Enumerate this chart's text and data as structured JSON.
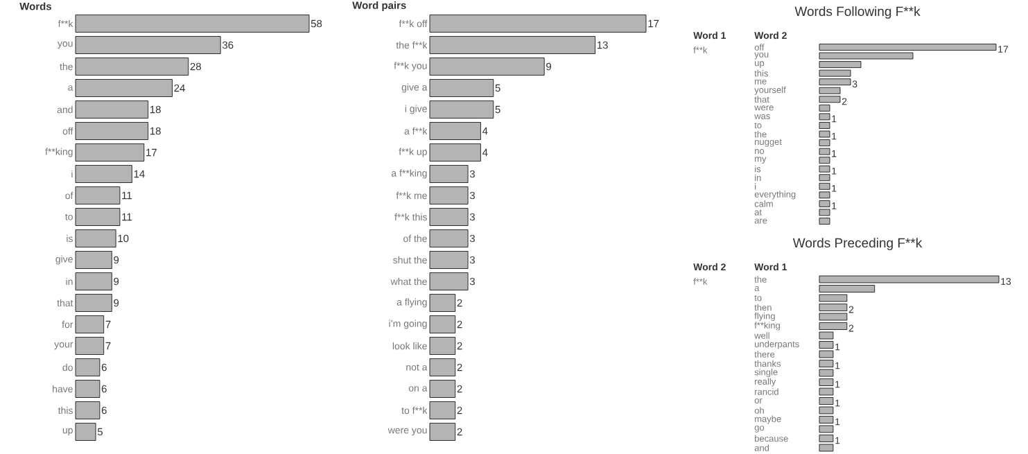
{
  "chart_data": [
    {
      "type": "bar",
      "orientation": "horizontal",
      "ylabel": "Words",
      "color": "#b4b4b4",
      "data_labels": true,
      "categories": [
        "f**k",
        "you",
        "the",
        "a",
        "and",
        "off",
        "f**king",
        "i",
        "of",
        "to",
        "is",
        "give",
        "in",
        "that",
        "for",
        "your",
        "do",
        "have",
        "this",
        "up"
      ],
      "values": [
        58,
        36,
        28,
        24,
        18,
        18,
        17,
        14,
        11,
        11,
        10,
        9,
        9,
        9,
        7,
        7,
        6,
        6,
        6,
        5
      ]
    },
    {
      "type": "bar",
      "orientation": "horizontal",
      "ylabel": "Word pairs",
      "color": "#b4b4b4",
      "data_labels": true,
      "categories": [
        "f**k off",
        "the f**k",
        "f**k you",
        "give a",
        "i give",
        "a f**k",
        "f**k up",
        "a f**king",
        "f**k me",
        "f**k this",
        "of the",
        "shut the",
        "what the",
        "a flying",
        "i’m going",
        "look like",
        "not a",
        "on a",
        "to f**k",
        "were you"
      ],
      "values": [
        17,
        13,
        9,
        5,
        5,
        4,
        4,
        3,
        3,
        3,
        3,
        3,
        3,
        2,
        2,
        2,
        2,
        2,
        2,
        2
      ]
    },
    {
      "type": "bar",
      "orientation": "horizontal",
      "title": "Words Following F**k",
      "ylabel": "Word 2",
      "annotations": [
        "Word 1",
        "f**k"
      ],
      "color": "#b4b4b4",
      "categories": [
        "off",
        "you",
        "up",
        "this",
        "me",
        "yourself",
        "that",
        "were",
        "was",
        "to",
        "the",
        "nugget",
        "no",
        "my",
        "is",
        "in",
        "i",
        "everything",
        "calm",
        "at",
        "are"
      ],
      "values": [
        17,
        9,
        4,
        3,
        3,
        2,
        2,
        1,
        1,
        1,
        1,
        1,
        1,
        1,
        1,
        1,
        1,
        1,
        1,
        1,
        1
      ],
      "value_labels": [
        "17",
        null,
        null,
        null,
        "3",
        null,
        "2",
        null,
        "1",
        null,
        "1",
        null,
        "1",
        null,
        "1",
        null,
        "1",
        null,
        "1",
        null,
        null
      ]
    },
    {
      "type": "bar",
      "orientation": "horizontal",
      "title": "Words Preceding F**k",
      "ylabel": "Word 1",
      "annotations": [
        "Word 2",
        "f**k"
      ],
      "color": "#b4b4b4",
      "categories": [
        "the",
        "a",
        "to",
        "then",
        "flying",
        "f**king",
        "well",
        "underpants",
        "there",
        "thanks",
        "single",
        "really",
        "rancid",
        "or",
        "oh",
        "maybe",
        "go",
        "because",
        "and"
      ],
      "values": [
        13,
        4,
        2,
        2,
        2,
        2,
        1,
        1,
        1,
        1,
        1,
        1,
        1,
        1,
        1,
        1,
        1,
        1,
        1
      ],
      "value_labels": [
        "13",
        null,
        null,
        "2",
        null,
        "2",
        null,
        "1",
        null,
        "1",
        null,
        "1",
        null,
        "1",
        null,
        "1",
        null,
        "1",
        null
      ]
    }
  ]
}
